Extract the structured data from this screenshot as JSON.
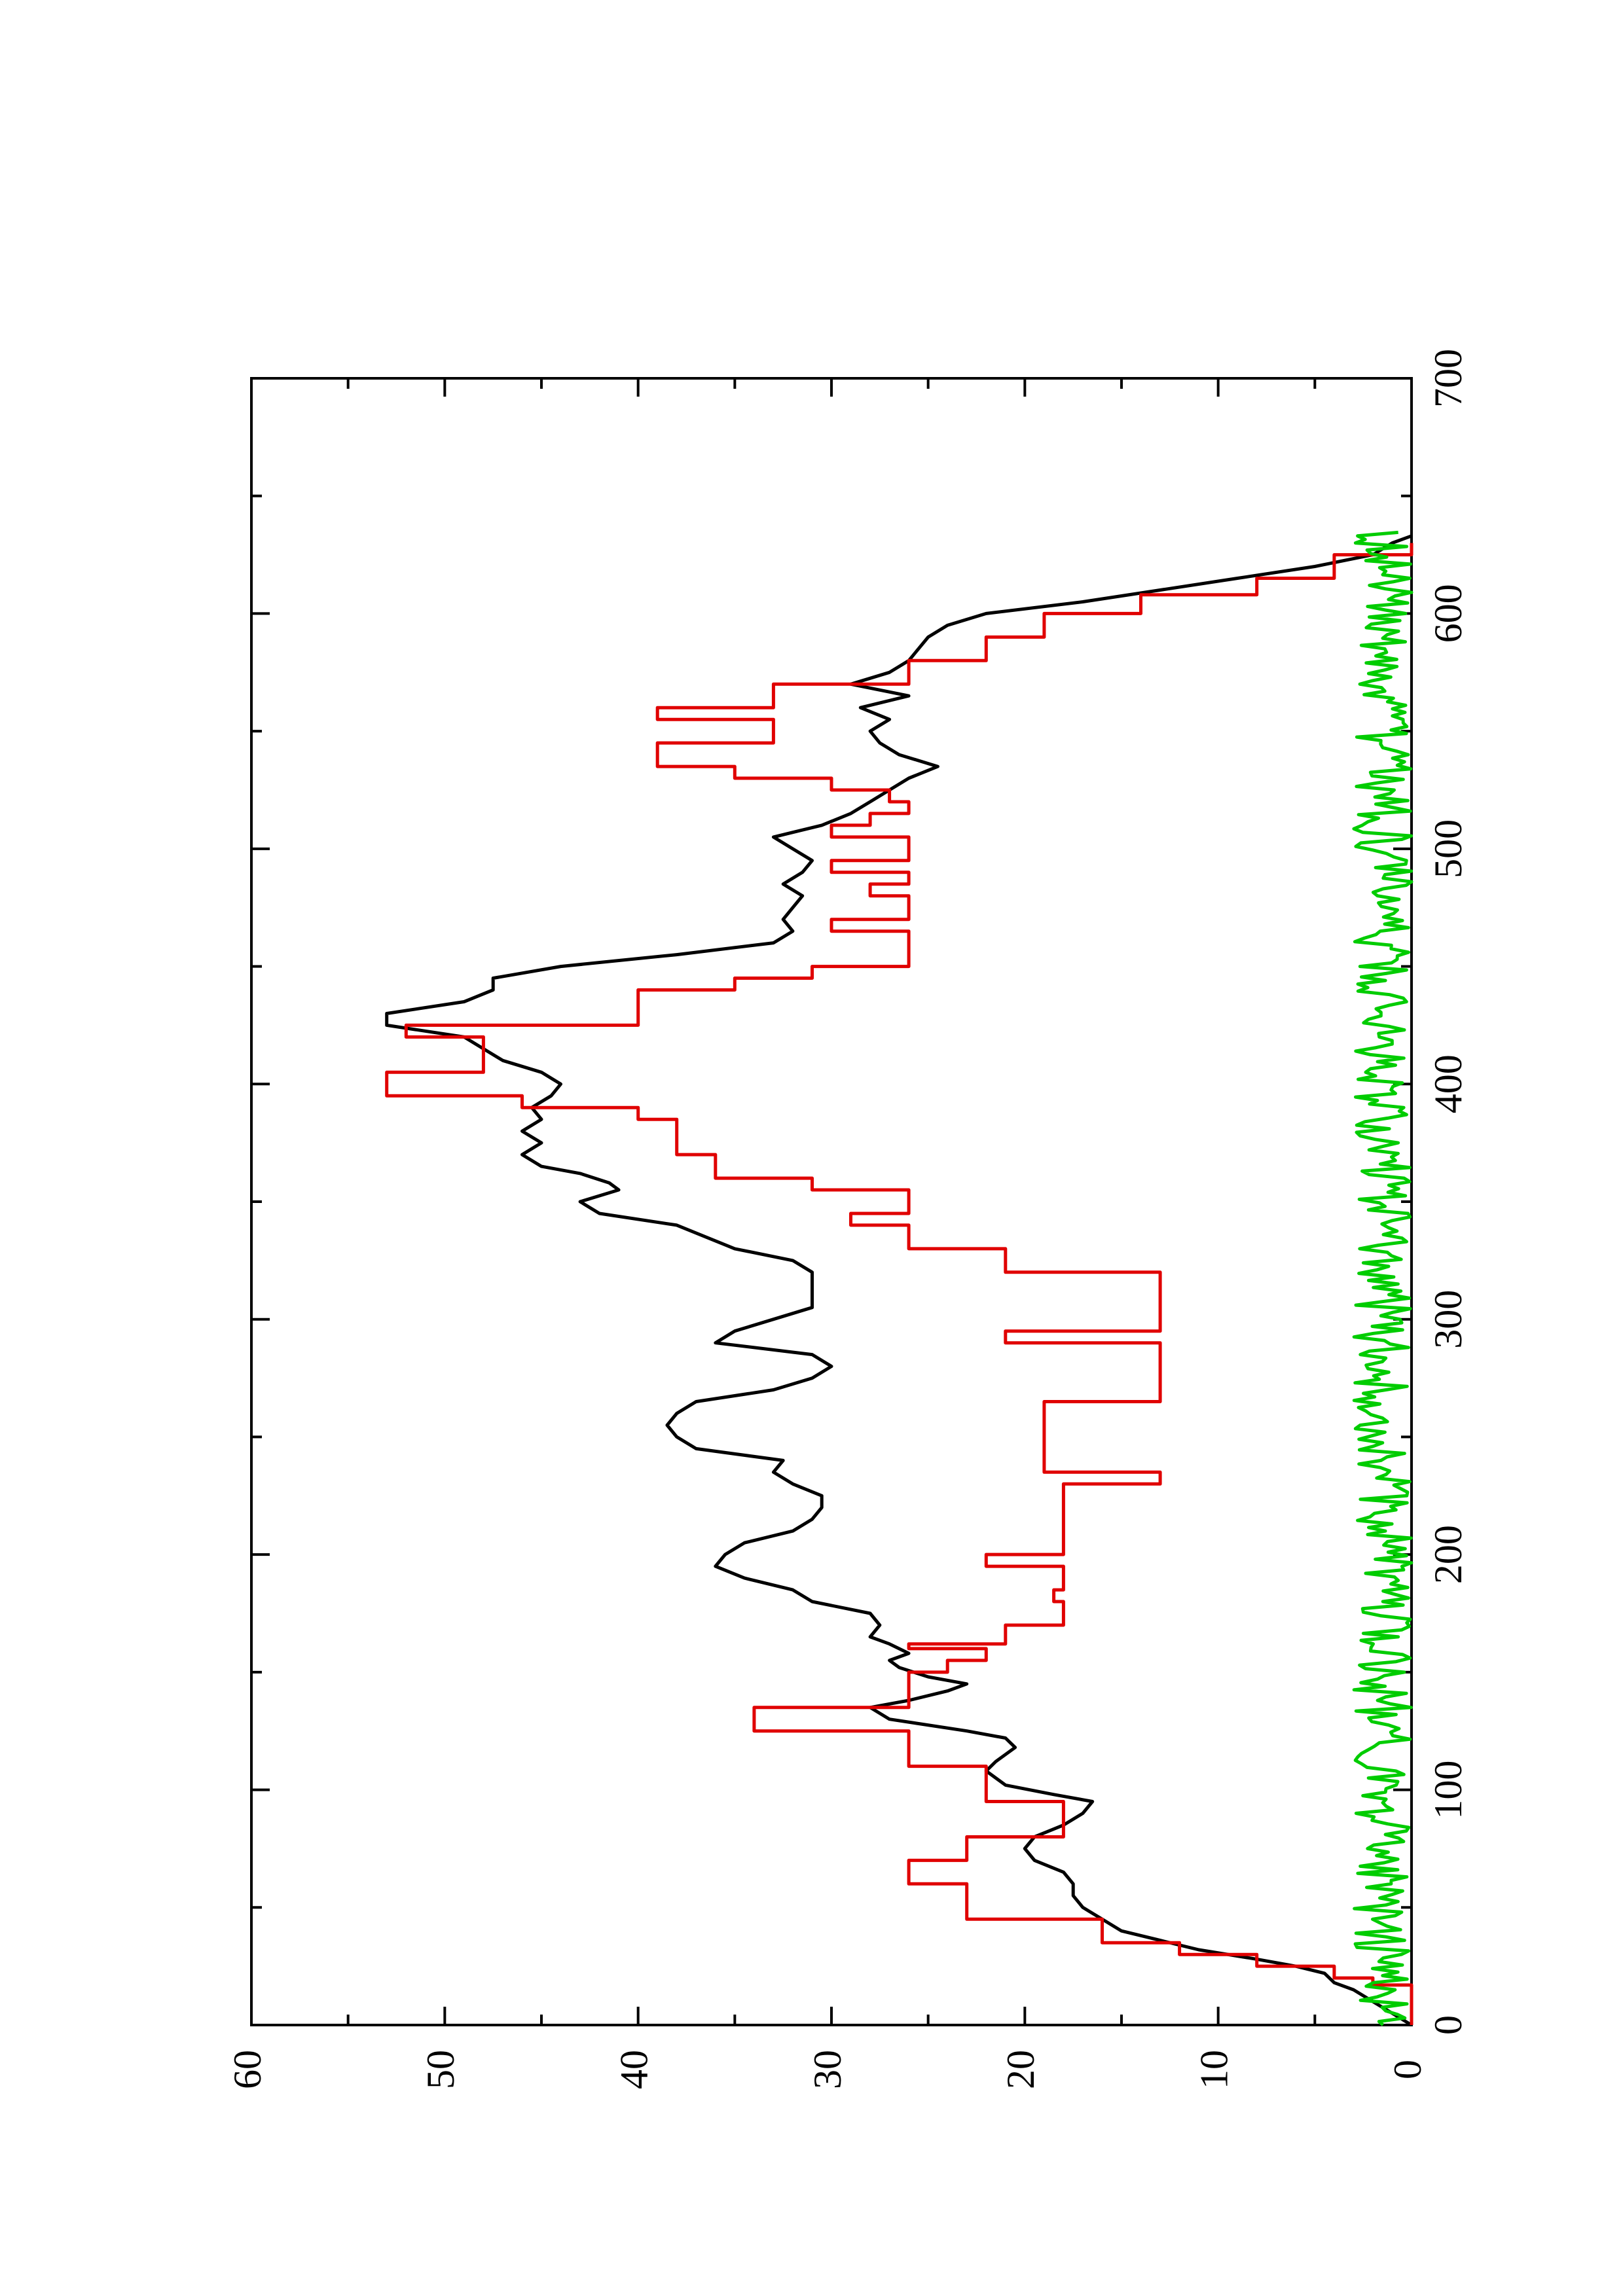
{
  "chart_data": {
    "type": "line",
    "orientation": "rotated-90-ccw",
    "title": "",
    "xlabel": "",
    "ylabel": "",
    "xlim": [
      0,
      700
    ],
    "ylim": [
      0,
      60
    ],
    "x_ticks": [
      0,
      100,
      200,
      300,
      400,
      500,
      600,
      700
    ],
    "x_minor_ticks": [
      50,
      150,
      250,
      350,
      450,
      550,
      650
    ],
    "y_ticks": [
      0,
      10,
      20,
      30,
      40,
      50,
      60
    ],
    "y_minor_ticks": [
      5,
      15,
      25,
      35,
      45,
      55
    ],
    "grid": false,
    "legend": "none",
    "colors": {
      "black": "#000000",
      "red": "#e00000",
      "green": "#00cc00"
    },
    "series": [
      {
        "color": "#000000",
        "style": "line",
        "points": [
          [
            0,
            0
          ],
          [
            5,
            1
          ],
          [
            10,
            2
          ],
          [
            15,
            3
          ],
          [
            18,
            4
          ],
          [
            22,
            4.5
          ],
          [
            25,
            6
          ],
          [
            28,
            8
          ],
          [
            32,
            11
          ],
          [
            36,
            13
          ],
          [
            40,
            15
          ],
          [
            45,
            16
          ],
          [
            50,
            17
          ],
          [
            55,
            17.5
          ],
          [
            60,
            17.5
          ],
          [
            65,
            18
          ],
          [
            70,
            19.5
          ],
          [
            75,
            20
          ],
          [
            80,
            19.5
          ],
          [
            85,
            18
          ],
          [
            90,
            17
          ],
          [
            95,
            16.5
          ],
          [
            98,
            18.5
          ],
          [
            102,
            21
          ],
          [
            108,
            22
          ],
          [
            112,
            21.5
          ],
          [
            118,
            20.5
          ],
          [
            122,
            21
          ],
          [
            125,
            23
          ],
          [
            130,
            27
          ],
          [
            135,
            28
          ],
          [
            138,
            26
          ],
          [
            142,
            24
          ],
          [
            145,
            23
          ],
          [
            148,
            25
          ],
          [
            152,
            26.5
          ],
          [
            155,
            27
          ],
          [
            158,
            26
          ],
          [
            162,
            27
          ],
          [
            165,
            28
          ],
          [
            170,
            27.5
          ],
          [
            175,
            28
          ],
          [
            180,
            31
          ],
          [
            185,
            32
          ],
          [
            190,
            34.5
          ],
          [
            195,
            36
          ],
          [
            200,
            35.5
          ],
          [
            205,
            34.5
          ],
          [
            210,
            32
          ],
          [
            215,
            31
          ],
          [
            220,
            30.5
          ],
          [
            225,
            30.5
          ],
          [
            230,
            32
          ],
          [
            235,
            33
          ],
          [
            240,
            32.5
          ],
          [
            245,
            37
          ],
          [
            250,
            38
          ],
          [
            255,
            38.5
          ],
          [
            260,
            38
          ],
          [
            265,
            37
          ],
          [
            270,
            33
          ],
          [
            275,
            31
          ],
          [
            280,
            30
          ],
          [
            285,
            31
          ],
          [
            290,
            36
          ],
          [
            295,
            35
          ],
          [
            300,
            33
          ],
          [
            305,
            31
          ],
          [
            310,
            31
          ],
          [
            315,
            31
          ],
          [
            320,
            31
          ],
          [
            325,
            32
          ],
          [
            330,
            35
          ],
          [
            335,
            36.5
          ],
          [
            340,
            38
          ],
          [
            345,
            42
          ],
          [
            350,
            43
          ],
          [
            355,
            41
          ],
          [
            358,
            41.5
          ],
          [
            362,
            43
          ],
          [
            365,
            45
          ],
          [
            370,
            46
          ],
          [
            375,
            45
          ],
          [
            380,
            46
          ],
          [
            385,
            45
          ],
          [
            390,
            45.5
          ],
          [
            395,
            44.5
          ],
          [
            400,
            44
          ],
          [
            405,
            45
          ],
          [
            410,
            47
          ],
          [
            415,
            48
          ],
          [
            420,
            49
          ],
          [
            425,
            53
          ],
          [
            430,
            53
          ],
          [
            435,
            49
          ],
          [
            440,
            47.5
          ],
          [
            445,
            47.5
          ],
          [
            450,
            44
          ],
          [
            455,
            38
          ],
          [
            460,
            33
          ],
          [
            465,
            32
          ],
          [
            470,
            32.5
          ],
          [
            475,
            32
          ],
          [
            480,
            31.5
          ],
          [
            485,
            32.5
          ],
          [
            490,
            31.5
          ],
          [
            495,
            31
          ],
          [
            500,
            32
          ],
          [
            505,
            33
          ],
          [
            510,
            30.5
          ],
          [
            515,
            29
          ],
          [
            520,
            28
          ],
          [
            525,
            27
          ],
          [
            530,
            26
          ],
          [
            535,
            24.5
          ],
          [
            540,
            26.5
          ],
          [
            545,
            27.5
          ],
          [
            550,
            28
          ],
          [
            555,
            27
          ],
          [
            560,
            28.5
          ],
          [
            565,
            26
          ],
          [
            570,
            29
          ],
          [
            575,
            27
          ],
          [
            580,
            26
          ],
          [
            585,
            25.5
          ],
          [
            590,
            25
          ],
          [
            595,
            24
          ],
          [
            600,
            22
          ],
          [
            605,
            17
          ],
          [
            610,
            13
          ],
          [
            615,
            9
          ],
          [
            620,
            5
          ],
          [
            625,
            2
          ],
          [
            630,
            1
          ],
          [
            633,
            0
          ]
        ]
      },
      {
        "color": "#e00000",
        "style": "step",
        "points": [
          [
            0,
            0
          ],
          [
            17,
            0
          ],
          [
            17,
            2
          ],
          [
            20,
            2
          ],
          [
            20,
            4
          ],
          [
            25,
            4
          ],
          [
            25,
            8
          ],
          [
            30,
            8
          ],
          [
            30,
            12
          ],
          [
            35,
            12
          ],
          [
            35,
            16
          ],
          [
            45,
            16
          ],
          [
            45,
            23
          ],
          [
            60,
            23
          ],
          [
            60,
            26
          ],
          [
            70,
            26
          ],
          [
            70,
            23
          ],
          [
            80,
            23
          ],
          [
            80,
            18
          ],
          [
            95,
            18
          ],
          [
            95,
            22
          ],
          [
            110,
            22
          ],
          [
            110,
            26
          ],
          [
            125,
            26
          ],
          [
            125,
            34
          ],
          [
            135,
            34
          ],
          [
            135,
            26
          ],
          [
            150,
            26
          ],
          [
            150,
            24
          ],
          [
            155,
            24
          ],
          [
            155,
            22
          ],
          [
            160,
            22
          ],
          [
            160,
            26
          ],
          [
            162,
            26
          ],
          [
            162,
            21
          ],
          [
            170,
            21
          ],
          [
            170,
            18
          ],
          [
            180,
            18
          ],
          [
            180,
            18.5
          ],
          [
            185,
            18.5
          ],
          [
            185,
            18
          ],
          [
            195,
            18
          ],
          [
            195,
            22
          ],
          [
            200,
            22
          ],
          [
            200,
            18
          ],
          [
            215,
            18
          ],
          [
            215,
            18
          ],
          [
            230,
            18
          ],
          [
            230,
            13
          ],
          [
            235,
            13
          ],
          [
            235,
            19
          ],
          [
            265,
            19
          ],
          [
            265,
            13
          ],
          [
            280,
            13
          ],
          [
            280,
            13
          ],
          [
            290,
            13
          ],
          [
            290,
            21
          ],
          [
            295,
            21
          ],
          [
            295,
            13
          ],
          [
            320,
            13
          ],
          [
            320,
            21
          ],
          [
            330,
            21
          ],
          [
            330,
            26
          ],
          [
            340,
            26
          ],
          [
            340,
            29
          ],
          [
            345,
            29
          ],
          [
            345,
            26
          ],
          [
            355,
            26
          ],
          [
            355,
            31
          ],
          [
            360,
            31
          ],
          [
            360,
            36
          ],
          [
            370,
            36
          ],
          [
            370,
            38
          ],
          [
            385,
            38
          ],
          [
            385,
            40
          ],
          [
            390,
            40
          ],
          [
            390,
            46
          ],
          [
            395,
            46
          ],
          [
            395,
            53
          ],
          [
            405,
            53
          ],
          [
            405,
            48
          ],
          [
            410,
            48
          ],
          [
            410,
            48
          ],
          [
            420,
            48
          ],
          [
            420,
            52
          ],
          [
            425,
            52
          ],
          [
            425,
            40
          ],
          [
            440,
            40
          ],
          [
            440,
            35
          ],
          [
            445,
            35
          ],
          [
            445,
            31
          ],
          [
            450,
            31
          ],
          [
            450,
            26
          ],
          [
            455,
            26
          ],
          [
            455,
            26
          ],
          [
            465,
            26
          ],
          [
            465,
            30
          ],
          [
            470,
            30
          ],
          [
            470,
            26
          ],
          [
            480,
            26
          ],
          [
            480,
            28
          ],
          [
            485,
            28
          ],
          [
            485,
            26
          ],
          [
            490,
            26
          ],
          [
            490,
            30
          ],
          [
            495,
            30
          ],
          [
            495,
            26
          ],
          [
            505,
            26
          ],
          [
            505,
            30
          ],
          [
            510,
            30
          ],
          [
            510,
            28
          ],
          [
            515,
            28
          ],
          [
            515,
            26
          ],
          [
            520,
            26
          ],
          [
            520,
            27
          ],
          [
            525,
            27
          ],
          [
            525,
            30
          ],
          [
            530,
            30
          ],
          [
            530,
            35
          ],
          [
            535,
            35
          ],
          [
            535,
            39
          ],
          [
            545,
            39
          ],
          [
            545,
            33
          ],
          [
            555,
            33
          ],
          [
            555,
            39
          ],
          [
            560,
            39
          ],
          [
            560,
            33
          ],
          [
            570,
            33
          ],
          [
            570,
            26
          ],
          [
            580,
            26
          ],
          [
            580,
            22
          ],
          [
            590,
            22
          ],
          [
            590,
            19
          ],
          [
            600,
            19
          ],
          [
            600,
            14
          ],
          [
            608,
            14
          ],
          [
            608,
            8
          ],
          [
            615,
            8
          ],
          [
            615,
            4
          ],
          [
            625,
            4
          ],
          [
            625,
            0
          ],
          [
            630,
            0
          ]
        ]
      },
      {
        "color": "#00cc00",
        "style": "noise",
        "x_range": [
          0,
          635
        ],
        "y_range": [
          0,
          3
        ]
      }
    ]
  }
}
